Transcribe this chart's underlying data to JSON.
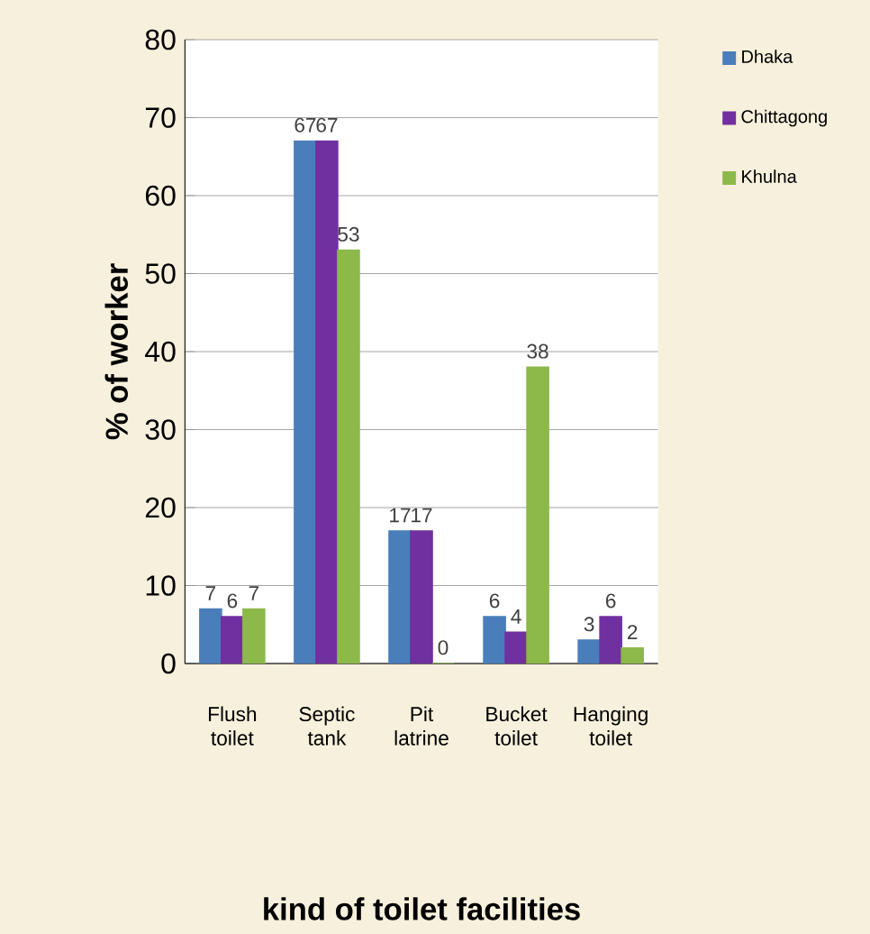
{
  "chart_data": {
    "type": "bar",
    "xlabel": "kind of toilet facilities",
    "ylabel": "% of worker",
    "categories": [
      "Flush toilet",
      "Septic tank",
      "Pit latrine",
      "Bucket toilet",
      "Hanging toilet"
    ],
    "series": [
      {
        "name": "Dhaka",
        "color": "#4a7ebb",
        "values": [
          7,
          67,
          17,
          6,
          3
        ]
      },
      {
        "name": "Chittagong",
        "color": "#7030a0",
        "values": [
          6,
          67,
          17,
          4,
          6
        ]
      },
      {
        "name": "Khulna",
        "color": "#8db84a",
        "values": [
          7,
          53,
          0,
          38,
          2
        ]
      }
    ],
    "ylim": [
      0,
      80
    ],
    "yticks": [
      0,
      10,
      20,
      30,
      40,
      50,
      60,
      70,
      80
    ],
    "grid": "y",
    "legend": "top right",
    "data_labels": true
  }
}
